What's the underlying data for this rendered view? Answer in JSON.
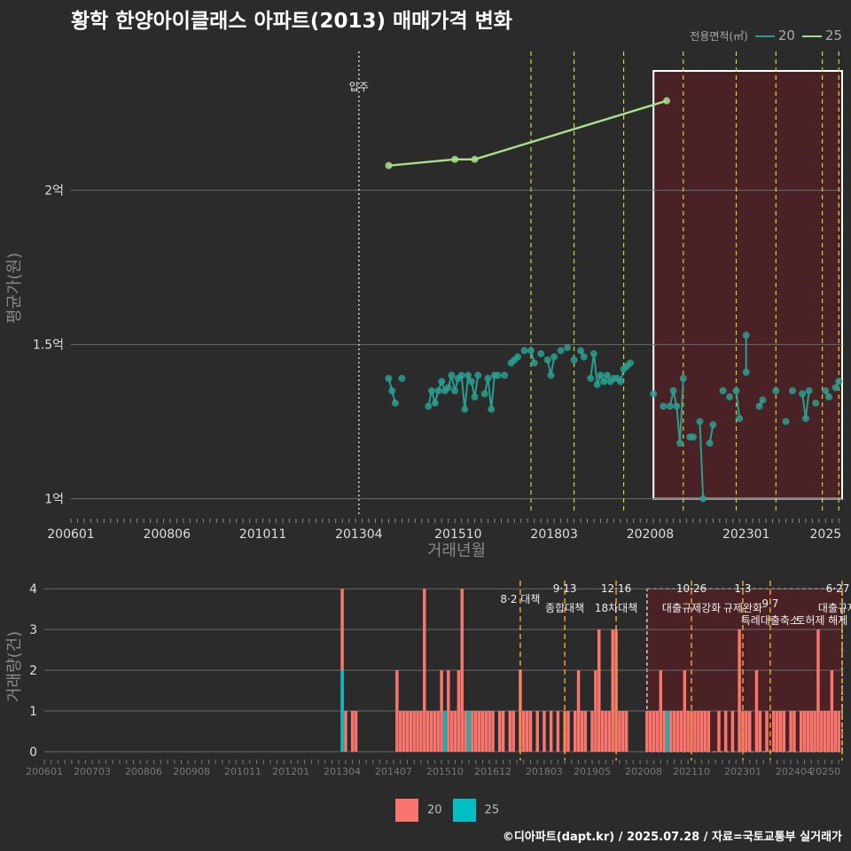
{
  "title": "황학 한양아이클래스 아파트(2013) 매매가격 변화",
  "credit": "©디아파트(dapt.kr) / 2025.07.28 / 자료=국토교통부 실거래가",
  "legend_top": {
    "title": "전용면적(㎡)",
    "items": [
      {
        "label": "20",
        "color": "#2a9d8f"
      },
      {
        "label": "25",
        "color": "#a8e08a"
      }
    ]
  },
  "legend_bottom": {
    "items": [
      {
        "label": "20",
        "color": "#f8766d"
      },
      {
        "label": "25",
        "color": "#00bfc4"
      }
    ]
  },
  "chart_data": [
    {
      "type": "line",
      "title": "황학 한양아이클래스 아파트(2013) 매매가격 변화",
      "xlabel": "거래년월",
      "ylabel": "평균가(원)",
      "xlim": [
        "2006-01",
        "2025-06"
      ],
      "ylim": [
        0.95,
        2.45
      ],
      "x_ticks": [
        "200601",
        "200806",
        "201011",
        "201304",
        "201510",
        "201803",
        "202008",
        "202301",
        "2025"
      ],
      "y_ticks": [
        {
          "value": 1.0,
          "label": "1억"
        },
        {
          "value": 1.5,
          "label": "1.5억"
        },
        {
          "value": 2.0,
          "label": "2억"
        }
      ],
      "move_in": {
        "label": "입주",
        "date": "2013-04"
      },
      "policy_lines": [
        "2017-08",
        "2018-09",
        "2019-12",
        "2021-06",
        "2022-10",
        "2023-10",
        "2024-12",
        "2025-05"
      ],
      "highlight_range": [
        "2020-09",
        "2025-06"
      ],
      "series": [
        {
          "name": "25",
          "color": "#a8e08a",
          "points": [
            [
              "2014-01",
              2.08
            ],
            [
              "2015-09",
              2.1
            ],
            [
              "2016-03",
              2.1
            ],
            [
              "2021-01",
              2.29
            ]
          ]
        },
        {
          "name": "20",
          "color": "#2a9d8f",
          "points": [
            [
              "2014-01",
              1.39
            ],
            [
              "2014-02",
              1.35
            ],
            [
              "2014-03",
              1.31
            ],
            [
              "2014-05",
              1.39
            ],
            [
              "2015-01",
              1.3
            ],
            [
              "2015-02",
              1.35
            ],
            [
              "2015-03",
              1.31
            ],
            [
              "2015-04",
              1.35
            ],
            [
              "2015-05",
              1.38
            ],
            [
              "2015-06",
              1.35
            ],
            [
              "2015-07",
              1.36
            ],
            [
              "2015-08",
              1.4
            ],
            [
              "2015-09",
              1.35
            ],
            [
              "2015-10",
              1.39
            ],
            [
              "2015-11",
              1.4
            ],
            [
              "2015-12",
              1.29
            ],
            [
              "2016-01",
              1.4
            ],
            [
              "2016-02",
              1.38
            ],
            [
              "2016-03",
              1.33
            ],
            [
              "2016-04",
              1.4
            ],
            [
              "2016-06",
              1.34
            ],
            [
              "2016-07",
              1.39
            ],
            [
              "2016-08",
              1.29
            ],
            [
              "2016-09",
              1.4
            ],
            [
              "2016-10",
              1.4
            ],
            [
              "2016-12",
              1.4
            ],
            [
              "2017-02",
              1.44
            ],
            [
              "2017-03",
              1.45
            ],
            [
              "2017-04",
              1.46
            ],
            [
              "2017-06",
              1.48
            ],
            [
              "2017-08",
              1.48
            ],
            [
              "2017-09",
              1.44
            ],
            [
              "2017-11",
              1.47
            ],
            [
              "2018-01",
              1.45
            ],
            [
              "2018-02",
              1.4
            ],
            [
              "2018-03",
              1.46
            ],
            [
              "2018-05",
              1.48
            ],
            [
              "2018-07",
              1.49
            ],
            [
              "2018-09",
              1.45
            ],
            [
              "2018-11",
              1.48
            ],
            [
              "2018-12",
              1.46
            ],
            [
              "2019-02",
              1.39
            ],
            [
              "2019-03",
              1.47
            ],
            [
              "2019-04",
              1.37
            ],
            [
              "2019-05",
              1.4
            ],
            [
              "2019-06",
              1.38
            ],
            [
              "2019-07",
              1.4
            ],
            [
              "2019-08",
              1.38
            ],
            [
              "2019-09",
              1.39
            ],
            [
              "2019-10",
              1.39
            ],
            [
              "2019-11",
              1.38
            ],
            [
              "2019-12",
              1.42
            ],
            [
              "2020-01",
              1.43
            ],
            [
              "2020-02",
              1.44
            ],
            [
              "2020-09",
              1.34
            ],
            [
              "2020-12",
              1.3
            ],
            [
              "2021-02",
              1.3
            ],
            [
              "2021-03",
              1.35
            ],
            [
              "2021-04",
              1.3
            ],
            [
              "2021-05",
              1.18
            ],
            [
              "2021-06",
              1.39
            ],
            [
              "2021-08",
              1.2
            ],
            [
              "2021-09",
              1.2
            ],
            [
              "2021-11",
              1.25
            ],
            [
              "2021-12",
              1.0
            ],
            [
              "2022-02",
              1.18
            ],
            [
              "2022-03",
              1.24
            ],
            [
              "2022-06",
              1.35
            ],
            [
              "2022-08",
              1.33
            ],
            [
              "2022-10",
              1.35
            ],
            [
              "2022-11",
              1.26
            ],
            [
              "2023-01",
              1.41
            ],
            [
              "2023-01",
              1.53
            ],
            [
              "2023-05",
              1.3
            ],
            [
              "2023-06",
              1.32
            ],
            [
              "2023-10",
              1.35
            ],
            [
              "2024-01",
              1.25
            ],
            [
              "2024-03",
              1.35
            ],
            [
              "2024-06",
              1.34
            ],
            [
              "2024-07",
              1.26
            ],
            [
              "2024-08",
              1.35
            ],
            [
              "2024-10",
              1.31
            ],
            [
              "2025-01",
              1.35
            ],
            [
              "2025-02",
              1.33
            ],
            [
              "2025-04",
              1.36
            ],
            [
              "2025-05",
              1.38
            ]
          ]
        }
      ]
    },
    {
      "type": "bar",
      "ylabel": "거래량(건)",
      "xlim": [
        "2006-01",
        "2025-06"
      ],
      "ylim": [
        0,
        4.2
      ],
      "y_ticks": [
        0,
        1,
        2,
        3,
        4
      ],
      "x_ticks": [
        "200601",
        "200703",
        "200806",
        "200908",
        "201011",
        "201201",
        "201304",
        "201407",
        "201510",
        "201612",
        "201803",
        "201905",
        "202008",
        "202110",
        "202301",
        "202404",
        "20250"
      ],
      "highlight_range": [
        "2020-09",
        "2025-06"
      ],
      "policy_lines": [
        "2017-08",
        "2018-09",
        "2019-12",
        "2021-10",
        "2023-01",
        "2023-09",
        "2025-06"
      ],
      "annotations": [
        {
          "date": "2017-08",
          "top": "",
          "bottom": "8·2 대책"
        },
        {
          "date": "2018-09",
          "top": "9·13",
          "bottom": "종합대책"
        },
        {
          "date": "2019-12",
          "top": "12·16",
          "bottom": "18차대책"
        },
        {
          "date": "2021-10",
          "top": "10·26",
          "bottom": "대출규제강화"
        },
        {
          "date": "2023-01",
          "top": "1·3",
          "bottom": "규제완화"
        },
        {
          "date": "2023-09",
          "top": "9·7",
          "bottom": "특례대출축소"
        },
        {
          "date": "2024-12",
          "top": "",
          "bottom": "토허제 해제"
        },
        {
          "date": "2025-06",
          "top": "6·27",
          "bottom": "대출규제"
        }
      ],
      "series": [
        {
          "name": "20",
          "color": "#f8766d",
          "values": [
            [
              "2013-04",
              4
            ],
            [
              "2013-05",
              1
            ],
            [
              "2013-07",
              1
            ],
            [
              "2013-08",
              1
            ],
            [
              "2014-08",
              2
            ],
            [
              "2014-09",
              1
            ],
            [
              "2014-10",
              1
            ],
            [
              "2014-11",
              1
            ],
            [
              "2014-12",
              1
            ],
            [
              "2015-01",
              1
            ],
            [
              "2015-02",
              1
            ],
            [
              "2015-03",
              1
            ],
            [
              "2015-04",
              4
            ],
            [
              "2015-05",
              1
            ],
            [
              "2015-06",
              1
            ],
            [
              "2015-07",
              1
            ],
            [
              "2015-08",
              1
            ],
            [
              "2015-09",
              2
            ],
            [
              "2015-10",
              1
            ],
            [
              "2015-11",
              2
            ],
            [
              "2015-12",
              1
            ],
            [
              "2016-01",
              1
            ],
            [
              "2016-02",
              2
            ],
            [
              "2016-03",
              4
            ],
            [
              "2016-04",
              1
            ],
            [
              "2016-05",
              1
            ],
            [
              "2016-06",
              1
            ],
            [
              "2016-07",
              1
            ],
            [
              "2016-08",
              1
            ],
            [
              "2016-09",
              1
            ],
            [
              "2016-10",
              1
            ],
            [
              "2016-11",
              1
            ],
            [
              "2016-12",
              1
            ],
            [
              "2017-02",
              1
            ],
            [
              "2017-03",
              1
            ],
            [
              "2017-05",
              1
            ],
            [
              "2017-06",
              1
            ],
            [
              "2017-08",
              2
            ],
            [
              "2017-09",
              1
            ],
            [
              "2017-10",
              1
            ],
            [
              "2017-11",
              1
            ],
            [
              "2018-01",
              1
            ],
            [
              "2018-03",
              1
            ],
            [
              "2018-05",
              1
            ],
            [
              "2018-07",
              1
            ],
            [
              "2018-09",
              1
            ],
            [
              "2018-10",
              1
            ],
            [
              "2018-12",
              1
            ],
            [
              "2019-01",
              2
            ],
            [
              "2019-02",
              1
            ],
            [
              "2019-03",
              1
            ],
            [
              "2019-05",
              1
            ],
            [
              "2019-06",
              2
            ],
            [
              "2019-07",
              3
            ],
            [
              "2019-08",
              1
            ],
            [
              "2019-09",
              1
            ],
            [
              "2019-10",
              1
            ],
            [
              "2019-11",
              3
            ],
            [
              "2019-12",
              3
            ],
            [
              "2020-01",
              1
            ],
            [
              "2020-02",
              1
            ],
            [
              "2020-03",
              1
            ],
            [
              "2020-09",
              1
            ],
            [
              "2020-10",
              1
            ],
            [
              "2020-11",
              1
            ],
            [
              "2020-12",
              1
            ],
            [
              "2021-01",
              2
            ],
            [
              "2021-02",
              1
            ],
            [
              "2021-03",
              1
            ],
            [
              "2021-04",
              1
            ],
            [
              "2021-05",
              1
            ],
            [
              "2021-06",
              1
            ],
            [
              "2021-07",
              1
            ],
            [
              "2021-08",
              2
            ],
            [
              "2021-09",
              1
            ],
            [
              "2021-10",
              1
            ],
            [
              "2021-11",
              1
            ],
            [
              "2021-12",
              1
            ],
            [
              "2022-01",
              1
            ],
            [
              "2022-02",
              1
            ],
            [
              "2022-03",
              1
            ],
            [
              "2022-06",
              1
            ],
            [
              "2022-08",
              1
            ],
            [
              "2022-10",
              1
            ],
            [
              "2022-12",
              3
            ],
            [
              "2023-01",
              1
            ],
            [
              "2023-02",
              1
            ],
            [
              "2023-03",
              1
            ],
            [
              "2023-05",
              2
            ],
            [
              "2023-06",
              1
            ],
            [
              "2023-08",
              1
            ],
            [
              "2023-10",
              1
            ],
            [
              "2023-11",
              1
            ],
            [
              "2023-12",
              1
            ],
            [
              "2024-01",
              1
            ],
            [
              "2024-03",
              1
            ],
            [
              "2024-04",
              1
            ],
            [
              "2024-06",
              1
            ],
            [
              "2024-07",
              1
            ],
            [
              "2024-08",
              1
            ],
            [
              "2024-09",
              1
            ],
            [
              "2024-10",
              1
            ],
            [
              "2024-11",
              3
            ],
            [
              "2024-12",
              1
            ],
            [
              "2025-01",
              1
            ],
            [
              "2025-02",
              1
            ],
            [
              "2025-03",
              2
            ],
            [
              "2025-04",
              1
            ],
            [
              "2025-05",
              1
            ]
          ]
        },
        {
          "name": "25",
          "color": "#00bfc4",
          "values": [
            [
              "2013-04",
              2
            ],
            [
              "2015-10",
              1
            ],
            [
              "2016-05",
              1
            ],
            [
              "2021-03",
              1
            ]
          ]
        }
      ]
    }
  ]
}
